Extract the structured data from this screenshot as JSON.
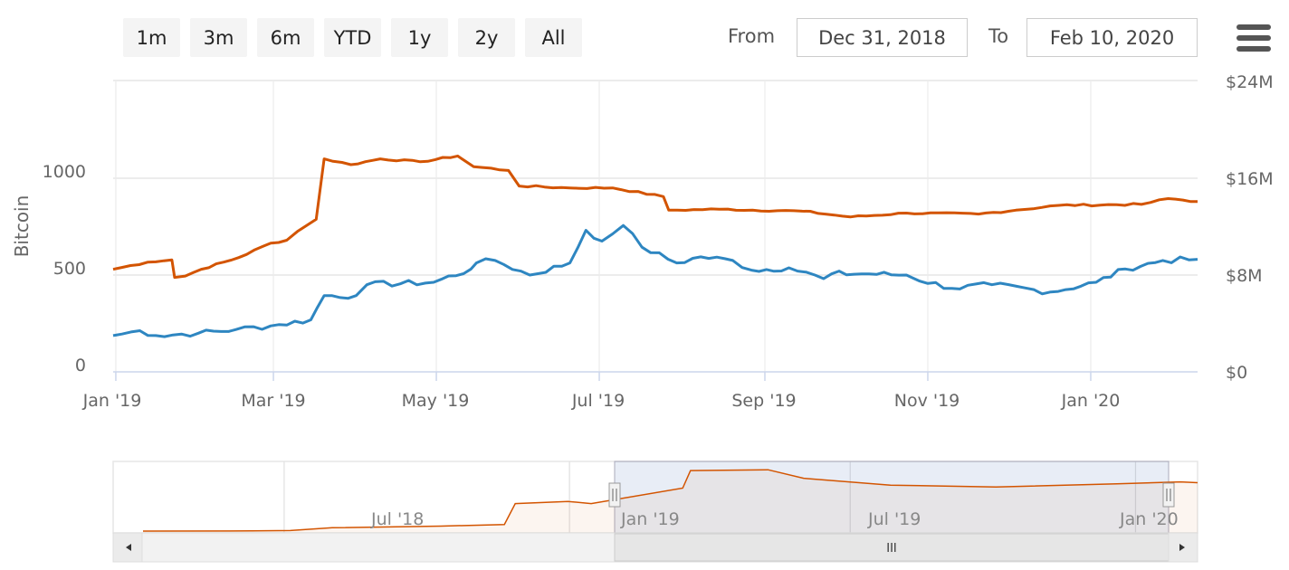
{
  "range_selector": {
    "buttons": [
      "1m",
      "3m",
      "6m",
      "YTD",
      "1y",
      "2y",
      "All"
    ],
    "from_label": "From",
    "from_value": "Dec 31, 2018",
    "to_label": "To",
    "to_value": "Feb 10, 2020"
  },
  "menu_icon": "hamburger-menu-icon",
  "chart_data": {
    "type": "line",
    "ylabel": "Bitcoin",
    "left_axis": {
      "ticks": [
        "0",
        "500",
        "1000"
      ],
      "ylim": [
        0,
        1000
      ]
    },
    "right_axis": {
      "ticks": [
        "$0",
        "$8M",
        "$16M",
        "$24M"
      ],
      "ylim": [
        0,
        24000000
      ]
    },
    "x_ticks": [
      "Jan '19",
      "Mar '19",
      "May '19",
      "Jul '19",
      "Sep '19",
      "Nov '19",
      "Jan '20"
    ],
    "x_range": [
      "2018-12-31",
      "2020-02-10"
    ],
    "grid": true,
    "series": [
      {
        "axis": "left",
        "color": "#d35400",
        "points": [
          [
            "2018-12-31",
            530
          ],
          [
            "2019-01-13",
            567
          ],
          [
            "2019-01-22",
            578
          ],
          [
            "2019-01-23",
            488
          ],
          [
            "2019-01-27",
            495
          ],
          [
            "2019-02-02",
            530
          ],
          [
            "2019-02-16",
            590
          ],
          [
            "2019-02-28",
            665
          ],
          [
            "2019-03-06",
            680
          ],
          [
            "2019-03-10",
            725
          ],
          [
            "2019-03-17",
            788
          ],
          [
            "2019-03-20",
            1100
          ],
          [
            "2019-03-30",
            1070
          ],
          [
            "2019-04-10",
            1100
          ],
          [
            "2019-04-25",
            1085
          ],
          [
            "2019-05-09",
            1115
          ],
          [
            "2019-05-15",
            1060
          ],
          [
            "2019-05-28",
            1040
          ],
          [
            "2019-06-01",
            960
          ],
          [
            "2019-06-20",
            950
          ],
          [
            "2019-07-06",
            950
          ],
          [
            "2019-07-25",
            905
          ],
          [
            "2019-07-27",
            835
          ],
          [
            "2019-08-15",
            840
          ],
          [
            "2019-09-15",
            830
          ],
          [
            "2019-10-03",
            800
          ],
          [
            "2019-10-24",
            820
          ],
          [
            "2019-11-20",
            815
          ],
          [
            "2019-12-04",
            835
          ],
          [
            "2019-12-20",
            860
          ],
          [
            "2020-01-20",
            865
          ],
          [
            "2020-01-30",
            895
          ],
          [
            "2020-02-10",
            880
          ]
        ]
      },
      {
        "axis": "right",
        "color": "#2e86c1",
        "points": [
          [
            "2018-12-31",
            3000000
          ],
          [
            "2019-01-10",
            3400000
          ],
          [
            "2019-01-16",
            3000000
          ],
          [
            "2019-02-01",
            3200000
          ],
          [
            "2019-02-15",
            3500000
          ],
          [
            "2019-02-28",
            3800000
          ],
          [
            "2019-03-15",
            4300000
          ],
          [
            "2019-03-20",
            6300000
          ],
          [
            "2019-04-01",
            6300000
          ],
          [
            "2019-04-05",
            7200000
          ],
          [
            "2019-04-30",
            7400000
          ],
          [
            "2019-05-14",
            8500000
          ],
          [
            "2019-05-16",
            9000000
          ],
          [
            "2019-05-23",
            9200000
          ],
          [
            "2019-06-05",
            8000000
          ],
          [
            "2019-06-20",
            9000000
          ],
          [
            "2019-06-26",
            11700000
          ],
          [
            "2019-07-02",
            10800000
          ],
          [
            "2019-07-06",
            11400000
          ],
          [
            "2019-07-10",
            12100000
          ],
          [
            "2019-07-17",
            10300000
          ],
          [
            "2019-07-30",
            9000000
          ],
          [
            "2019-08-08",
            9500000
          ],
          [
            "2019-08-20",
            9200000
          ],
          [
            "2019-08-27",
            8400000
          ],
          [
            "2019-09-10",
            8600000
          ],
          [
            "2019-09-23",
            7700000
          ],
          [
            "2019-09-26",
            8100000
          ],
          [
            "2019-10-10",
            8100000
          ],
          [
            "2019-10-24",
            8000000
          ],
          [
            "2019-10-26",
            7800000
          ],
          [
            "2019-11-10",
            6900000
          ],
          [
            "2019-11-25",
            7200000
          ],
          [
            "2019-12-17",
            6600000
          ],
          [
            "2020-01-03",
            7400000
          ],
          [
            "2020-01-14",
            8500000
          ],
          [
            "2020-01-28",
            9200000
          ],
          [
            "2020-02-10",
            9300000
          ]
        ]
      }
    ]
  },
  "navigator": {
    "x_ticks": [
      "Jul '18",
      "Jan '19",
      "Jul '19",
      "Jan '20"
    ],
    "x_range": [
      "2018-04-01",
      "2020-02-10"
    ],
    "selected_range": [
      "2018-12-31",
      "2020-02-10"
    ],
    "series_color": "#d35400",
    "points": [
      [
        "2018-04-01",
        0
      ],
      [
        "2018-06-10",
        3
      ],
      [
        "2018-07-05",
        10
      ],
      [
        "2018-08-01",
        60
      ],
      [
        "2018-10-10",
        90
      ],
      [
        "2018-11-20",
        120
      ],
      [
        "2018-11-27",
        500
      ],
      [
        "2018-12-31",
        540
      ],
      [
        "2019-01-15",
        500
      ],
      [
        "2019-03-15",
        780
      ],
      [
        "2019-03-20",
        1100
      ],
      [
        "2019-05-09",
        1115
      ],
      [
        "2019-06-01",
        960
      ],
      [
        "2019-07-27",
        835
      ],
      [
        "2019-10-03",
        800
      ],
      [
        "2019-12-20",
        860
      ],
      [
        "2020-01-30",
        895
      ],
      [
        "2020-02-10",
        880
      ]
    ],
    "scrollbar_grip": "III"
  }
}
